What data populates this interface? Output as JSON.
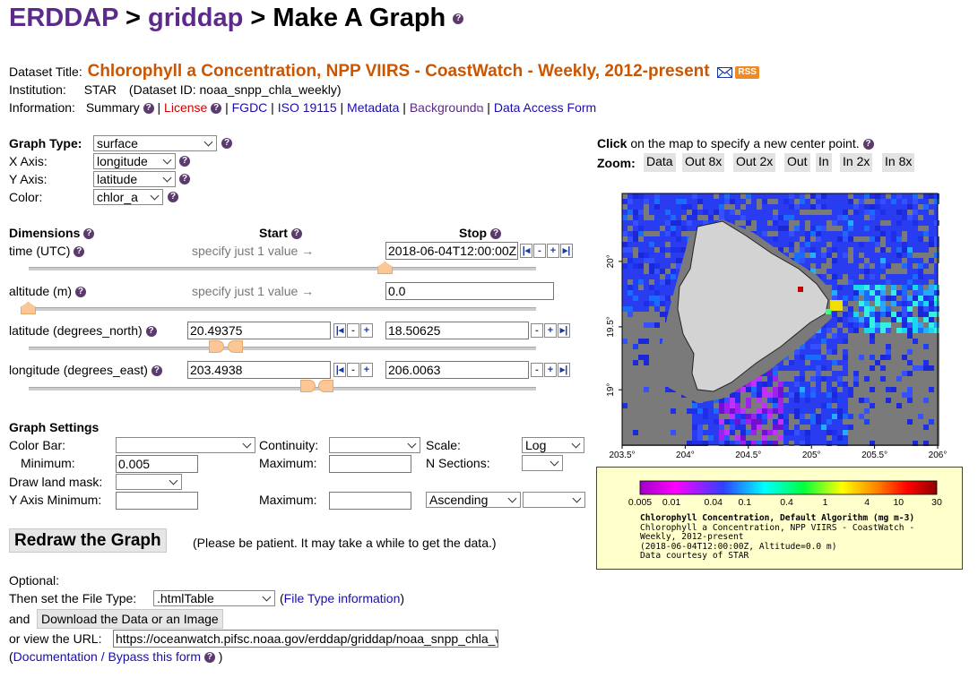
{
  "header": {
    "erddap": "ERDDAP",
    "sep1": ">",
    "griddap": "griddap",
    "sep2": ">",
    "title": "Make A Graph"
  },
  "dataset": {
    "title_label": "Dataset Title:",
    "title": "Chlorophyll a Concentration, NPP VIIRS - CoastWatch - Weekly, 2012-present",
    "rss": "RSS",
    "institution_label": "Institution:",
    "institution": "STAR",
    "dataset_id": "(Dataset ID: noaa_snpp_chla_weekly)",
    "information_label": "Information:",
    "info_links": {
      "summary": "Summary",
      "license": "License",
      "fgdc": "FGDC",
      "iso": "ISO 19115",
      "metadata": "Metadata",
      "background": "Background",
      "data_access": "Data Access Form"
    }
  },
  "graph": {
    "type_label": "Graph Type:",
    "type_value": "surface",
    "x_label": "X Axis:",
    "x_value": "longitude",
    "y_label": "Y Axis:",
    "y_value": "latitude",
    "color_label": "Color:",
    "color_value": "chlor_a"
  },
  "dimensions": {
    "header": "Dimensions",
    "start": "Start",
    "stop": "Stop",
    "time": {
      "label": "time (UTC)",
      "hint": "specify just 1 value →",
      "stop": "2018-06-04T12:00:00Z"
    },
    "altitude": {
      "label": "altitude (m)",
      "hint": "specify just 1 value →",
      "stop": "0.0"
    },
    "latitude": {
      "label": "latitude (degrees_north)",
      "start": "20.49375",
      "stop": "18.50625"
    },
    "longitude": {
      "label": "longitude (degrees_east)",
      "start": "203.4938",
      "stop": "206.0063"
    }
  },
  "settings": {
    "header": "Graph Settings",
    "colorbar_label": "Color Bar:",
    "continuity_label": "Continuity:",
    "scale_label": "Scale:",
    "scale_value": "Log",
    "minimum_label": "Minimum:",
    "minimum_value": "0.005",
    "maximum_label": "Maximum:",
    "nsections_label": "N Sections:",
    "landmask_label": "Draw land mask:",
    "ymin_label": "Y Axis Minimum:",
    "ymax_label": "Maximum:",
    "order_value": "Ascending"
  },
  "redraw": {
    "button": "Redraw the Graph",
    "note": "(Please be patient. It may take a while to get the data.)"
  },
  "optional": {
    "label": "Optional:",
    "filetype_label": "Then set the File Type:",
    "filetype_value": ".htmlTable",
    "filetype_info": "File Type information",
    "and_label": "and",
    "download_button": "Download the Data or an Image",
    "url_label": "or view the URL:",
    "url_value": "https://oceanwatch.pifsc.noaa.gov/erddap/griddap/noaa_snpp_chla_weekly.htmlTable",
    "doc_link": "Documentation / Bypass this form"
  },
  "map": {
    "click_bold": "Click",
    "click_text": "on the map to specify a new center point.",
    "zoom_label": "Zoom:",
    "zoom_buttons": [
      "Data",
      "Out 8x",
      "Out 2x",
      "Out",
      "In",
      "In 2x",
      "In 8x"
    ],
    "y_ticks": [
      "20°",
      "19.5°",
      "19°"
    ],
    "x_ticks": [
      "203.5°",
      "204°",
      "204.5°",
      "205°",
      "205.5°",
      "206°"
    ]
  },
  "legend": {
    "ticks": [
      "0.005",
      "0.01",
      "0.04",
      "0.1",
      "0.4",
      "1",
      "4",
      "10",
      "30"
    ],
    "title": "Chlorophyll Concentration, Default Algorithm (mg m-3)",
    "line1": "Chlorophyll a Concentration, NPP VIIRS - CoastWatch -",
    "line2": "Weekly, 2012-present",
    "line3": "(2018-06-04T12:00:00Z, Altitude=0.0 m)",
    "line4": "Data courtesy of STAR"
  }
}
